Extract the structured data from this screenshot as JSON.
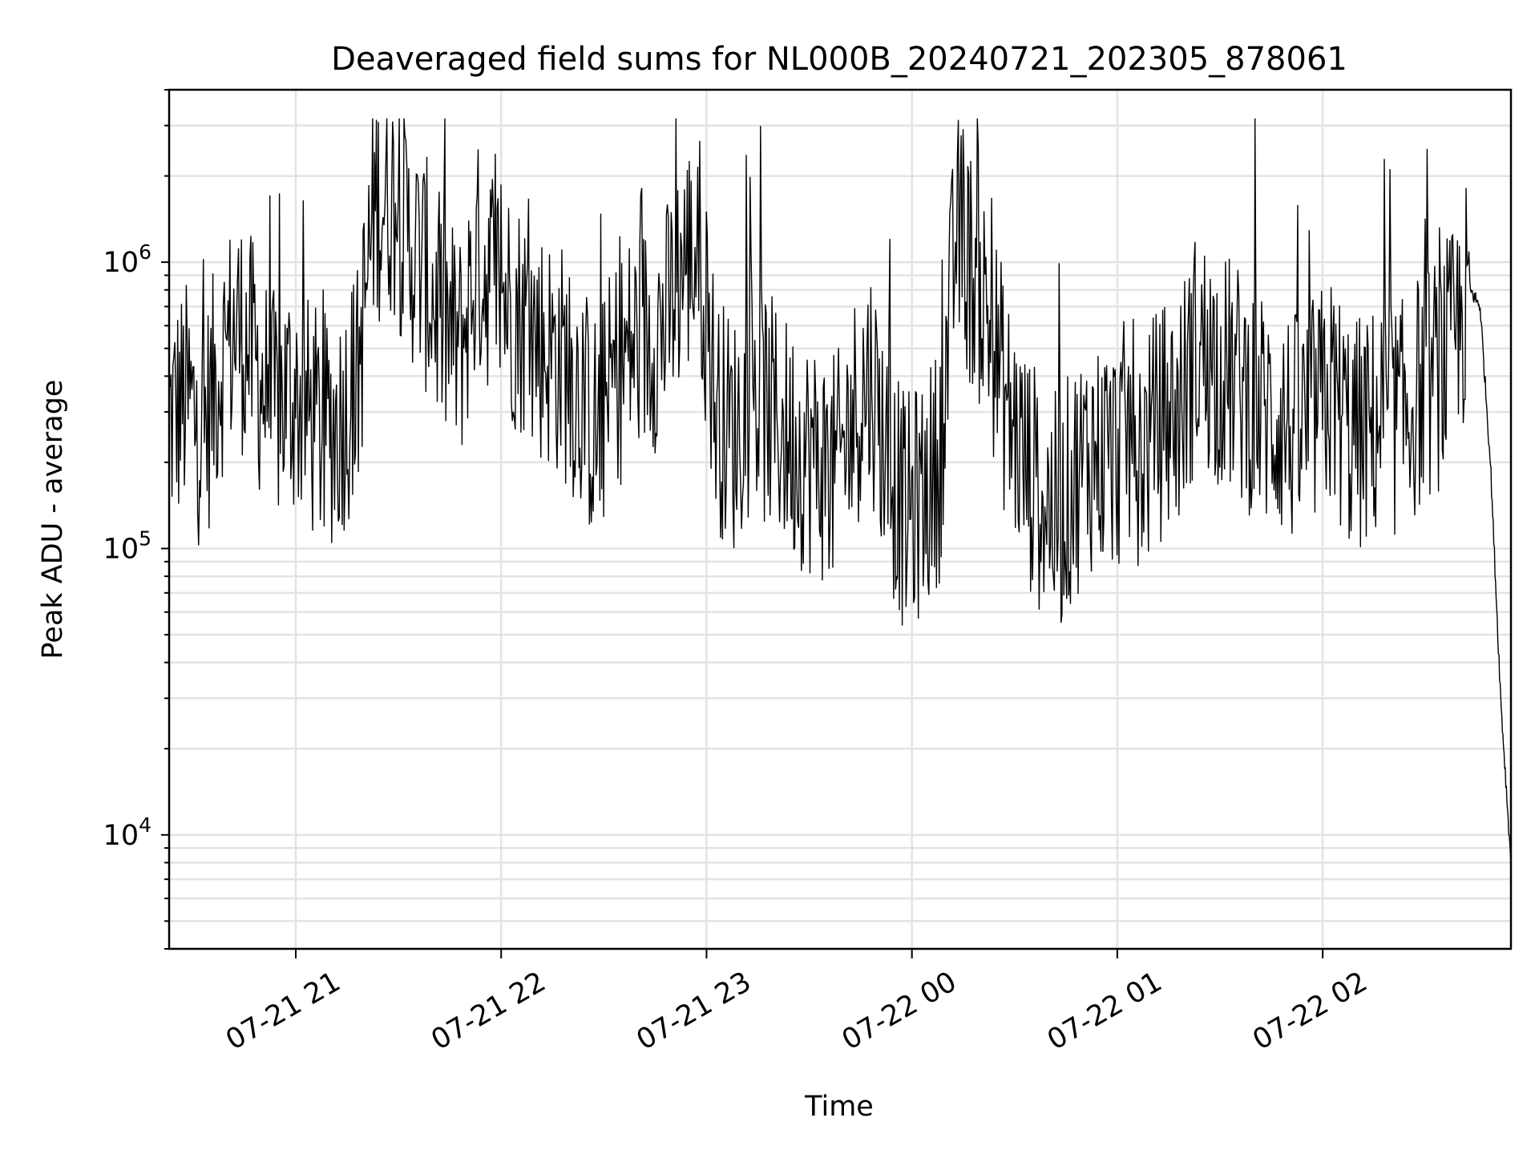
{
  "chart_data": {
    "type": "line",
    "title": "Deaveraged field sums for NL000B_20240721_202305_878061",
    "xlabel": "Time",
    "ylabel": "Peak ADU - average",
    "y_scale": "log",
    "ylim": [
      4000,
      4000000
    ],
    "x_range": [
      "07-21 20:23",
      "07-22 02:55"
    ],
    "x_ticks": [
      "07-21 21",
      "07-21 22",
      "07-21 23",
      "07-22 00",
      "07-22 01",
      "07-22 02"
    ],
    "y_ticks": [
      {
        "value": 10000,
        "label_base": "10",
        "label_exp": "4"
      },
      {
        "value": 100000,
        "label_base": "10",
        "label_exp": "5"
      },
      {
        "value": 1000000,
        "label_base": "10",
        "label_exp": "6"
      }
    ],
    "grid": true,
    "line_color": "#000000",
    "grid_color": "#e3e3e3",
    "series": [
      {
        "x": [
          "07-21 20:23",
          "07-21 20:28",
          "07-21 20:33",
          "07-21 20:38",
          "07-21 20:43",
          "07-21 20:48",
          "07-21 20:53",
          "07-21 20:58",
          "07-21 21:03",
          "07-21 21:08",
          "07-21 21:13",
          "07-21 21:18",
          "07-21 21:23",
          "07-21 21:28",
          "07-21 21:33",
          "07-21 21:38",
          "07-21 21:43",
          "07-21 21:48",
          "07-21 21:53",
          "07-21 21:58",
          "07-21 22:03",
          "07-21 22:08",
          "07-21 22:13",
          "07-21 22:18",
          "07-21 22:23",
          "07-21 22:28",
          "07-21 22:33",
          "07-21 22:38",
          "07-21 22:43",
          "07-21 22:48",
          "07-21 22:53",
          "07-21 22:58",
          "07-21 23:03",
          "07-21 23:08",
          "07-21 23:13",
          "07-21 23:18",
          "07-21 23:23",
          "07-21 23:28",
          "07-21 23:33",
          "07-21 23:38",
          "07-21 23:43",
          "07-21 23:48",
          "07-21 23:53",
          "07-21 23:58",
          "07-22 00:03",
          "07-22 00:08",
          "07-22 00:13",
          "07-22 00:18",
          "07-22 00:23",
          "07-22 00:28",
          "07-22 00:33",
          "07-22 00:38",
          "07-22 00:43",
          "07-22 00:48",
          "07-22 00:53",
          "07-22 00:58",
          "07-22 01:03",
          "07-22 01:08",
          "07-22 01:13",
          "07-22 01:18",
          "07-22 01:23",
          "07-22 01:28",
          "07-22 01:33",
          "07-22 01:38",
          "07-22 01:43",
          "07-22 01:48",
          "07-22 01:53",
          "07-22 01:58",
          "07-22 02:03",
          "07-22 02:08",
          "07-22 02:13",
          "07-22 02:18",
          "07-22 02:23",
          "07-22 02:28",
          "07-22 02:33",
          "07-22 02:38",
          "07-22 02:43",
          "07-22 02:46",
          "07-22 02:49",
          "07-22 02:52",
          "07-22 02:55"
        ],
        "y": [
          280000,
          330000,
          250000,
          450000,
          600000,
          450000,
          300000,
          350000,
          300000,
          250000,
          280000,
          380000,
          1600000,
          1700000,
          1200000,
          900000,
          600000,
          500000,
          1000000,
          900000,
          700000,
          600000,
          500000,
          450000,
          350000,
          250000,
          400000,
          500000,
          550000,
          600000,
          1000000,
          1100000,
          300000,
          250000,
          350000,
          300000,
          250000,
          220000,
          200000,
          180000,
          300000,
          400000,
          200000,
          130000,
          150000,
          200000,
          1300000,
          900000,
          600000,
          300000,
          200000,
          150000,
          130000,
          180000,
          220000,
          200000,
          250000,
          220000,
          280000,
          300000,
          500000,
          450000,
          400000,
          350000,
          300000,
          280000,
          250000,
          300000,
          350000,
          250000,
          250000,
          300000,
          280000,
          350000,
          400000,
          500000,
          800000,
          700000,
          200000,
          30000,
          8000
        ]
      }
    ]
  }
}
